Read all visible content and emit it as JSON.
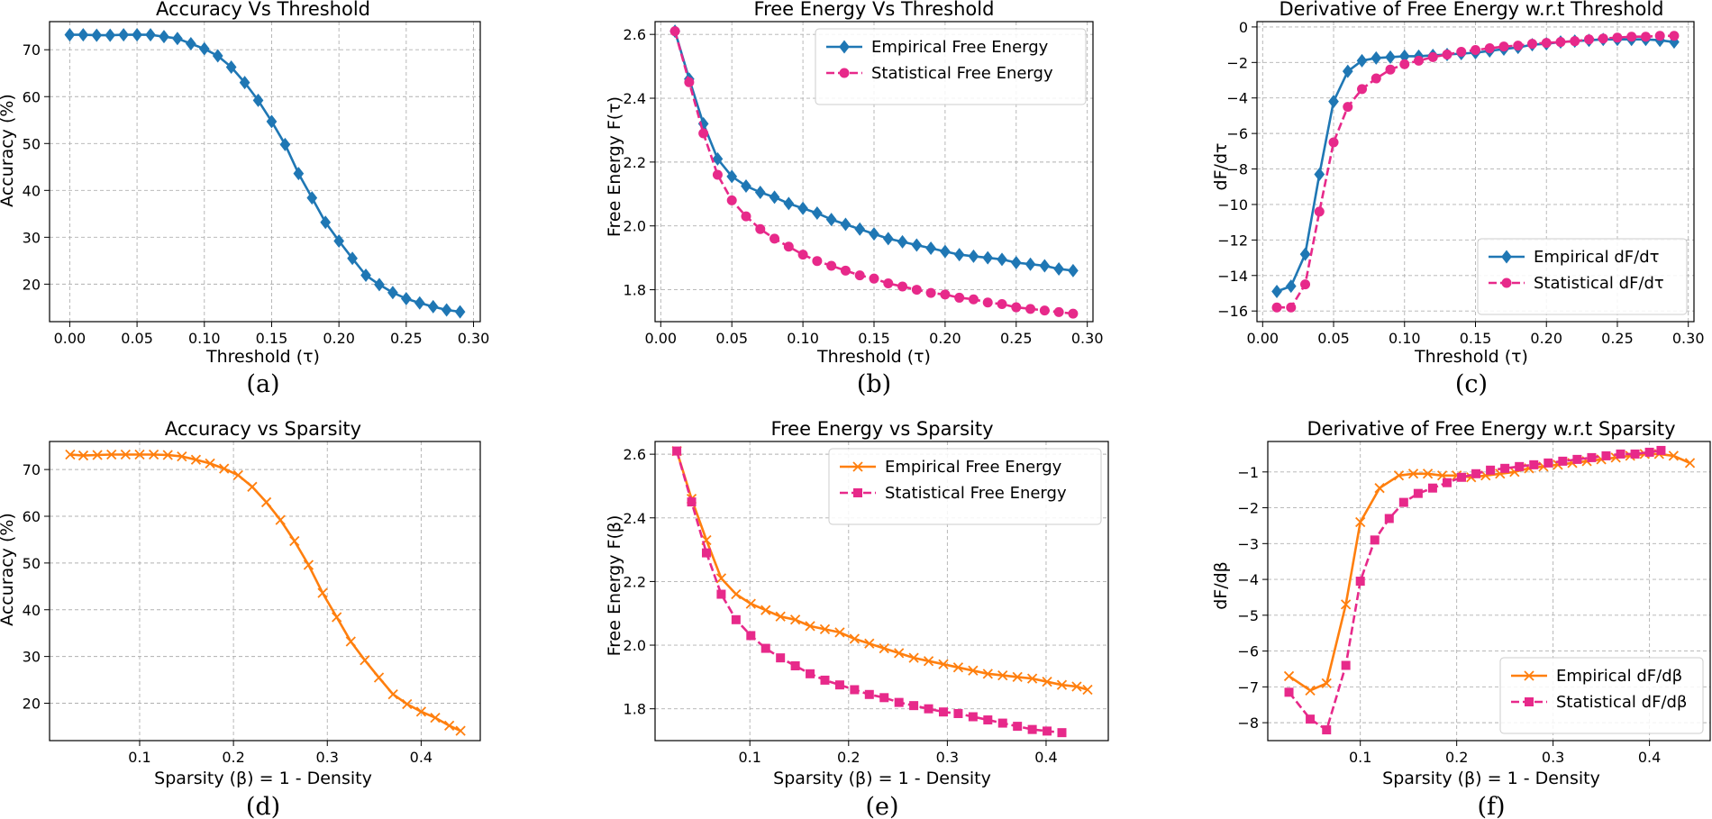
{
  "chart_data": [
    {
      "type": "line",
      "title": "Accuracy Vs Threshold",
      "xlabel": "Threshold (τ)",
      "ylabel": "Accuracy (%)",
      "caption": "(a)",
      "xlim": [
        -0.015,
        0.305
      ],
      "ylim": [
        12,
        76
      ],
      "xticks": [
        0.0,
        0.05,
        0.1,
        0.15,
        0.2,
        0.25,
        0.3
      ],
      "xtick_labels": [
        "0.00",
        "0.05",
        "0.10",
        "0.15",
        "0.20",
        "0.25",
        "0.30"
      ],
      "yticks": [
        20,
        30,
        40,
        50,
        60,
        70
      ],
      "ytick_labels": [
        "20",
        "30",
        "40",
        "50",
        "60",
        "70"
      ],
      "grid": true,
      "legend": null,
      "series": [
        {
          "color": "#1f77b4",
          "marker": "diamond",
          "dash": "solid",
          "x": [
            0.0,
            0.01,
            0.02,
            0.03,
            0.04,
            0.05,
            0.06,
            0.07,
            0.08,
            0.09,
            0.1,
            0.11,
            0.12,
            0.13,
            0.14,
            0.15,
            0.16,
            0.17,
            0.18,
            0.19,
            0.2,
            0.21,
            0.22,
            0.23,
            0.24,
            0.25,
            0.26,
            0.27,
            0.28,
            0.29
          ],
          "y": [
            73.2,
            73.2,
            73.1,
            73.1,
            73.2,
            73.2,
            73.2,
            72.8,
            72.4,
            71.3,
            70.2,
            68.7,
            66.3,
            63.0,
            59.2,
            54.7,
            49.8,
            43.6,
            38.4,
            33.2,
            29.2,
            25.5,
            21.9,
            19.9,
            18.2,
            16.9,
            16.0,
            15.2,
            14.5,
            14.1
          ]
        }
      ]
    },
    {
      "type": "line",
      "title": "Free Energy Vs Threshold",
      "xlabel": "Threshold (τ)",
      "ylabel": "Free Energy F(τ)",
      "caption": "(b)",
      "xlim": [
        -0.004,
        0.304
      ],
      "ylim": [
        1.7,
        2.64
      ],
      "xticks": [
        0.0,
        0.05,
        0.1,
        0.15,
        0.2,
        0.25,
        0.3
      ],
      "xtick_labels": [
        "0.00",
        "0.05",
        "0.10",
        "0.15",
        "0.20",
        "0.25",
        "0.30"
      ],
      "yticks": [
        1.8,
        2.0,
        2.2,
        2.4,
        2.6
      ],
      "ytick_labels": [
        "1.8",
        "2.0",
        "2.2",
        "2.4",
        "2.6"
      ],
      "grid": true,
      "legend": "upper right",
      "series": [
        {
          "name": "Empirical Free Energy",
          "color": "#1f77b4",
          "marker": "diamond",
          "dash": "solid",
          "x": [
            0.01,
            0.02,
            0.03,
            0.04,
            0.05,
            0.06,
            0.07,
            0.08,
            0.09,
            0.1,
            0.11,
            0.12,
            0.13,
            0.14,
            0.15,
            0.16,
            0.17,
            0.18,
            0.19,
            0.2,
            0.21,
            0.22,
            0.23,
            0.24,
            0.25,
            0.26,
            0.27,
            0.28,
            0.29
          ],
          "y": [
            2.61,
            2.46,
            2.32,
            2.21,
            2.155,
            2.125,
            2.105,
            2.09,
            2.07,
            2.055,
            2.04,
            2.02,
            2.005,
            1.99,
            1.975,
            1.96,
            1.95,
            1.94,
            1.93,
            1.92,
            1.91,
            1.905,
            1.9,
            1.895,
            1.885,
            1.88,
            1.875,
            1.865,
            1.86
          ]
        },
        {
          "name": "Statistical Free Energy",
          "color": "#e7298a",
          "marker": "circle",
          "dash": "dashed",
          "x": [
            0.01,
            0.02,
            0.03,
            0.04,
            0.05,
            0.06,
            0.07,
            0.08,
            0.09,
            0.1,
            0.11,
            0.12,
            0.13,
            0.14,
            0.15,
            0.16,
            0.17,
            0.18,
            0.19,
            0.2,
            0.21,
            0.22,
            0.23,
            0.24,
            0.25,
            0.26,
            0.27,
            0.28,
            0.29
          ],
          "y": [
            2.61,
            2.45,
            2.29,
            2.16,
            2.08,
            2.03,
            1.99,
            1.96,
            1.935,
            1.91,
            1.89,
            1.875,
            1.86,
            1.845,
            1.835,
            1.82,
            1.81,
            1.8,
            1.79,
            1.785,
            1.775,
            1.77,
            1.76,
            1.755,
            1.745,
            1.74,
            1.735,
            1.73,
            1.725
          ]
        }
      ]
    },
    {
      "type": "line",
      "title": "Derivative of Free Energy w.r.t Threshold",
      "xlabel": "Threshold (τ)",
      "ylabel": "dF/dτ",
      "caption": "(c)",
      "xlim": [
        -0.004,
        0.304
      ],
      "ylim": [
        -16.6,
        0.3
      ],
      "xticks": [
        0.0,
        0.05,
        0.1,
        0.15,
        0.2,
        0.25,
        0.3
      ],
      "xtick_labels": [
        "0.00",
        "0.05",
        "0.10",
        "0.15",
        "0.20",
        "0.25",
        "0.30"
      ],
      "yticks": [
        -16,
        -14,
        -12,
        -10,
        -8,
        -6,
        -4,
        -2,
        0
      ],
      "ytick_labels": [
        "−16",
        "−14",
        "−12",
        "−10",
        "−8",
        "−6",
        "−4",
        "−2",
        "0"
      ],
      "grid": true,
      "legend": "lower right",
      "series": [
        {
          "name": "Empirical dF/dτ",
          "color": "#1f77b4",
          "marker": "diamond",
          "dash": "solid",
          "x": [
            0.01,
            0.02,
            0.03,
            0.04,
            0.05,
            0.06,
            0.07,
            0.08,
            0.09,
            0.1,
            0.11,
            0.12,
            0.13,
            0.14,
            0.15,
            0.16,
            0.17,
            0.18,
            0.19,
            0.2,
            0.21,
            0.22,
            0.23,
            0.24,
            0.25,
            0.26,
            0.27,
            0.28,
            0.29
          ],
          "y": [
            -14.9,
            -14.6,
            -12.8,
            -8.3,
            -4.2,
            -2.5,
            -1.9,
            -1.75,
            -1.7,
            -1.65,
            -1.65,
            -1.6,
            -1.55,
            -1.5,
            -1.45,
            -1.35,
            -1.25,
            -1.15,
            -1.0,
            -0.95,
            -0.85,
            -0.8,
            -0.75,
            -0.7,
            -0.7,
            -0.7,
            -0.7,
            -0.75,
            -0.85
          ]
        },
        {
          "name": "Statistical dF/dτ",
          "color": "#e7298a",
          "marker": "circle",
          "dash": "dashed",
          "x": [
            0.01,
            0.02,
            0.03,
            0.04,
            0.05,
            0.06,
            0.07,
            0.08,
            0.09,
            0.1,
            0.11,
            0.12,
            0.13,
            0.14,
            0.15,
            0.16,
            0.17,
            0.18,
            0.19,
            0.2,
            0.21,
            0.22,
            0.23,
            0.24,
            0.25,
            0.26,
            0.27,
            0.28,
            0.29
          ],
          "y": [
            -15.8,
            -15.8,
            -14.5,
            -10.4,
            -6.5,
            -4.5,
            -3.5,
            -2.9,
            -2.4,
            -2.1,
            -1.9,
            -1.7,
            -1.55,
            -1.4,
            -1.3,
            -1.2,
            -1.1,
            -1.05,
            -0.95,
            -0.9,
            -0.85,
            -0.8,
            -0.7,
            -0.65,
            -0.6,
            -0.55,
            -0.55,
            -0.5,
            -0.5
          ]
        }
      ]
    },
    {
      "type": "line",
      "title": "Accuracy vs Sparsity",
      "xlabel": "Sparsity (β) = 1 - Density",
      "ylabel": "Accuracy (%)",
      "caption": "(d)",
      "xlim": [
        0.004,
        0.463
      ],
      "ylim": [
        12,
        76
      ],
      "xticks": [
        0.1,
        0.2,
        0.3,
        0.4
      ],
      "xtick_labels": [
        "0.1",
        "0.2",
        "0.3",
        "0.4"
      ],
      "yticks": [
        20,
        30,
        40,
        50,
        60,
        70
      ],
      "ytick_labels": [
        "20",
        "30",
        "40",
        "50",
        "60",
        "70"
      ],
      "grid": true,
      "legend": null,
      "series": [
        {
          "color": "#ff7f0e",
          "marker": "x",
          "dash": "solid",
          "x": [
            0.026,
            0.04,
            0.055,
            0.07,
            0.085,
            0.1,
            0.115,
            0.13,
            0.145,
            0.16,
            0.175,
            0.19,
            0.205,
            0.22,
            0.235,
            0.25,
            0.265,
            0.28,
            0.295,
            0.31,
            0.325,
            0.34,
            0.355,
            0.37,
            0.385,
            0.4,
            0.415,
            0.43,
            0.442
          ],
          "y": [
            73.2,
            73.0,
            73.1,
            73.2,
            73.2,
            73.2,
            73.2,
            73.1,
            72.8,
            72.1,
            71.3,
            70.2,
            68.8,
            66.3,
            63.0,
            59.2,
            54.7,
            49.6,
            43.6,
            38.4,
            33.2,
            29.2,
            25.5,
            21.9,
            19.8,
            18.2,
            16.9,
            15.2,
            14.1
          ]
        }
      ]
    },
    {
      "type": "line",
      "title": "Free Energy vs Sparsity",
      "xlabel": "Sparsity (β) = 1 - Density",
      "ylabel": "Free Energy F(β)",
      "caption": "(e)",
      "xlim": [
        0.004,
        0.463
      ],
      "ylim": [
        1.7,
        2.64
      ],
      "xticks": [
        0.1,
        0.2,
        0.3,
        0.4
      ],
      "xtick_labels": [
        "0.1",
        "0.2",
        "0.3",
        "0.4"
      ],
      "yticks": [
        1.8,
        2.0,
        2.2,
        2.4,
        2.6
      ],
      "ytick_labels": [
        "1.8",
        "2.0",
        "2.2",
        "2.4",
        "2.6"
      ],
      "grid": true,
      "legend": "upper right",
      "series": [
        {
          "name": "Empirical Free Energy",
          "color": "#ff7f0e",
          "marker": "x",
          "dash": "solid",
          "x": [
            0.026,
            0.041,
            0.056,
            0.071,
            0.086,
            0.101,
            0.116,
            0.131,
            0.146,
            0.161,
            0.176,
            0.191,
            0.206,
            0.221,
            0.236,
            0.251,
            0.266,
            0.281,
            0.296,
            0.311,
            0.326,
            0.341,
            0.356,
            0.371,
            0.386,
            0.401,
            0.416,
            0.431,
            0.442
          ],
          "y": [
            2.61,
            2.46,
            2.33,
            2.21,
            2.16,
            2.13,
            2.11,
            2.09,
            2.08,
            2.06,
            2.05,
            2.04,
            2.02,
            2.005,
            1.99,
            1.975,
            1.96,
            1.95,
            1.94,
            1.93,
            1.92,
            1.91,
            1.905,
            1.9,
            1.895,
            1.885,
            1.875,
            1.87,
            1.86
          ]
        },
        {
          "name": "Statistical Free Energy",
          "color": "#e7298a",
          "marker": "square",
          "dash": "dashed",
          "x": [
            0.026,
            0.041,
            0.056,
            0.071,
            0.086,
            0.101,
            0.116,
            0.131,
            0.146,
            0.161,
            0.176,
            0.191,
            0.206,
            0.221,
            0.236,
            0.251,
            0.266,
            0.281,
            0.296,
            0.311,
            0.326,
            0.341,
            0.356,
            0.371,
            0.386,
            0.401,
            0.416
          ],
          "y": [
            2.61,
            2.45,
            2.29,
            2.16,
            2.08,
            2.03,
            1.99,
            1.96,
            1.935,
            1.91,
            1.89,
            1.875,
            1.86,
            1.845,
            1.835,
            1.82,
            1.81,
            1.8,
            1.79,
            1.785,
            1.775,
            1.765,
            1.755,
            1.745,
            1.735,
            1.73,
            1.725
          ]
        }
      ]
    },
    {
      "type": "line",
      "title": "Derivative of Free Energy w.r.t Sparsity",
      "xlabel": "Sparsity (β) = 1 - Density",
      "ylabel": "dF/dβ",
      "caption": "(f)",
      "xlim": [
        0.004,
        0.463
      ],
      "ylim": [
        -8.5,
        -0.15
      ],
      "xticks": [
        0.1,
        0.2,
        0.3,
        0.4
      ],
      "xtick_labels": [
        "0.1",
        "0.2",
        "0.3",
        "0.4"
      ],
      "yticks": [
        -8,
        -7,
        -6,
        -5,
        -4,
        -3,
        -2,
        -1
      ],
      "ytick_labels": [
        "−8",
        "−7",
        "−6",
        "−5",
        "−4",
        "−3",
        "−2",
        "−1"
      ],
      "grid": true,
      "legend": "lower right",
      "series": [
        {
          "name": "Empirical dF/dβ",
          "color": "#ff7f0e",
          "marker": "x",
          "dash": "solid",
          "x": [
            0.026,
            0.048,
            0.065,
            0.085,
            0.1,
            0.12,
            0.14,
            0.155,
            0.17,
            0.185,
            0.2,
            0.215,
            0.23,
            0.245,
            0.26,
            0.275,
            0.29,
            0.305,
            0.32,
            0.335,
            0.35,
            0.365,
            0.38,
            0.395,
            0.41,
            0.425,
            0.442
          ],
          "y": [
            -6.7,
            -7.1,
            -6.9,
            -4.7,
            -2.4,
            -1.45,
            -1.1,
            -1.05,
            -1.05,
            -1.1,
            -1.1,
            -1.15,
            -1.1,
            -1.05,
            -1.0,
            -0.9,
            -0.85,
            -0.8,
            -0.75,
            -0.7,
            -0.65,
            -0.6,
            -0.55,
            -0.5,
            -0.5,
            -0.55,
            -0.75
          ]
        },
        {
          "name": "Statistical dF/dβ",
          "color": "#e7298a",
          "marker": "square",
          "dash": "dashed",
          "x": [
            0.026,
            0.048,
            0.065,
            0.085,
            0.1,
            0.115,
            0.13,
            0.145,
            0.16,
            0.175,
            0.19,
            0.205,
            0.22,
            0.235,
            0.25,
            0.265,
            0.28,
            0.295,
            0.31,
            0.325,
            0.34,
            0.355,
            0.37,
            0.385,
            0.4,
            0.412
          ],
          "y": [
            -7.15,
            -7.9,
            -8.2,
            -6.4,
            -4.05,
            -2.9,
            -2.3,
            -1.85,
            -1.6,
            -1.45,
            -1.3,
            -1.15,
            -1.05,
            -0.95,
            -0.9,
            -0.85,
            -0.8,
            -0.75,
            -0.7,
            -0.65,
            -0.6,
            -0.55,
            -0.5,
            -0.5,
            -0.45,
            -0.4
          ]
        }
      ]
    }
  ]
}
